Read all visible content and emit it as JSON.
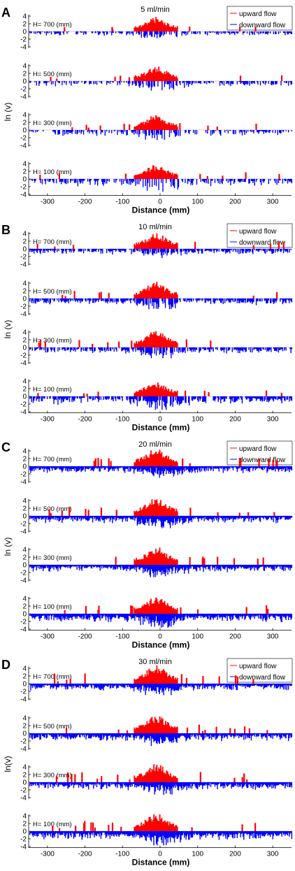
{
  "figure": {
    "legend": {
      "upward": "upward flow",
      "downward": "downward flow"
    },
    "colors": {
      "upward": "#ff0000",
      "downward": "#0000ff",
      "axis": "#000000",
      "zero_line": "#9a9a9a"
    },
    "ylabel_default": "ln (v)",
    "ylabel_last": "ln(v)",
    "xlabel": "Distance (mm)",
    "xticks": [
      "-300",
      "-200",
      "-100",
      "0",
      "100",
      "200",
      "300"
    ]
  },
  "chart_data": [
    {
      "panel": "A",
      "type": "bar",
      "title": "5 ml/min",
      "xlabel": "Distance (mm)",
      "ylabel": "ln (v)",
      "xlim": [
        -350,
        350
      ],
      "ylim": [
        -4,
        4
      ],
      "yticks": [
        "4",
        "2",
        "0",
        "-2",
        "-4"
      ],
      "legend": [
        "upward flow",
        "downward flow"
      ],
      "series": [
        {
          "name": "upward flow",
          "color": "#ff0000",
          "side": "up",
          "heights": [
            3.5,
            3.8,
            3.7,
            3.2,
            4.0
          ],
          "density": 1.0
        },
        {
          "name": "downward flow",
          "color": "#0000ff",
          "side": "down",
          "heights": [
            -1.8,
            -2.5,
            -2.2,
            -2.0,
            -1.8
          ],
          "density": 0.55
        }
      ],
      "subplots": [
        {
          "label": "H= 700 (mm)",
          "up_peak": 3.8,
          "down_peak": -2.0
        },
        {
          "label": "H= 500 (mm)",
          "up_peak": 4.0,
          "down_peak": -2.5
        },
        {
          "label": "H= 300 (mm)",
          "up_peak": 4.2,
          "down_peak": -2.6
        },
        {
          "label": "H= 100 (mm)",
          "up_peak": 3.8,
          "down_peak": -3.3
        }
      ]
    },
    {
      "panel": "B",
      "type": "bar",
      "title": "10 ml/min",
      "xlabel": "Distance (mm)",
      "ylabel": "ln (v)",
      "xlim": [
        -350,
        350
      ],
      "ylim": [
        -4,
        4
      ],
      "yticks": [
        "4",
        "2",
        "0",
        "-2",
        "-4"
      ],
      "legend": [
        "upward flow",
        "downward flow"
      ],
      "series": [
        {
          "name": "upward flow",
          "color": "#ff0000",
          "side": "up",
          "heights": [
            4.0,
            4.4,
            4.2,
            4.0
          ],
          "density": 1.0
        },
        {
          "name": "downward flow",
          "color": "#0000ff",
          "side": "down",
          "heights": [
            -2.0,
            -2.6,
            -2.4,
            -2.2
          ],
          "density": 0.75
        }
      ],
      "subplots": [
        {
          "label": "H= 700 (mm)",
          "up_peak": 4.3,
          "down_peak": -2.4
        },
        {
          "label": "H= 500 (mm)",
          "up_peak": 4.4,
          "down_peak": -2.8
        },
        {
          "label": "H= 300 (mm)",
          "up_peak": 4.4,
          "down_peak": -2.8
        },
        {
          "label": "H= 100 (mm)",
          "up_peak": 4.0,
          "down_peak": -3.5
        }
      ]
    },
    {
      "panel": "C",
      "type": "bar",
      "title": "20 ml/min",
      "xlabel": "Distance (mm)",
      "ylabel": "ln (v)",
      "xlim": [
        -350,
        350
      ],
      "ylim": [
        -4,
        4
      ],
      "yticks": [
        "4",
        "2",
        "0",
        "-2",
        "-4"
      ],
      "legend": [
        "upward flow",
        "downward flow"
      ],
      "series": [
        {
          "name": "upward flow",
          "color": "#ff0000",
          "side": "up",
          "heights": [
            4.6,
            4.8,
            4.7,
            4.5
          ],
          "density": 1.0
        },
        {
          "name": "downward flow",
          "color": "#0000ff",
          "side": "down",
          "heights": [
            -2.6,
            -3.0,
            -2.8,
            -2.6
          ],
          "density": 1.0
        }
      ],
      "subplots": [
        {
          "label": "H= 700 (mm)",
          "up_peak": 4.8,
          "down_peak": -3.0
        },
        {
          "label": "H= 500 (mm)",
          "up_peak": 4.8,
          "down_peak": -3.2
        },
        {
          "label": "H= 300 (mm)",
          "up_peak": 4.8,
          "down_peak": -3.2
        },
        {
          "label": "H= 100 (mm)",
          "up_peak": 4.6,
          "down_peak": -3.6
        }
      ]
    },
    {
      "panel": "D",
      "type": "bar",
      "title": "30 ml/min",
      "xlabel": "Distance (mm)",
      "ylabel": "ln(v)",
      "xlim": [
        -350,
        350
      ],
      "ylim": [
        -4,
        4
      ],
      "yticks": [
        "4",
        "2",
        "0",
        "-2",
        "-4"
      ],
      "legend": [
        "upward flow",
        "downward flow"
      ],
      "series": [
        {
          "name": "upward flow",
          "color": "#ff0000",
          "side": "up",
          "heights": [
            4.8,
            4.9,
            4.8,
            4.6
          ],
          "density": 1.0
        },
        {
          "name": "downward flow",
          "color": "#0000ff",
          "side": "down",
          "heights": [
            -2.8,
            -3.1,
            -3.0,
            -2.8
          ],
          "density": 1.0
        }
      ],
      "subplots": [
        {
          "label": "H= 700 (mm)",
          "up_peak": 4.9,
          "down_peak": -3.0
        },
        {
          "label": "H= 500 (mm)",
          "up_peak": 4.9,
          "down_peak": -3.3
        },
        {
          "label": "H= 300 (mm)",
          "up_peak": 4.9,
          "down_peak": -3.3
        },
        {
          "label": "H= 100 (mm)",
          "up_peak": 4.7,
          "down_peak": -3.7
        }
      ]
    }
  ]
}
